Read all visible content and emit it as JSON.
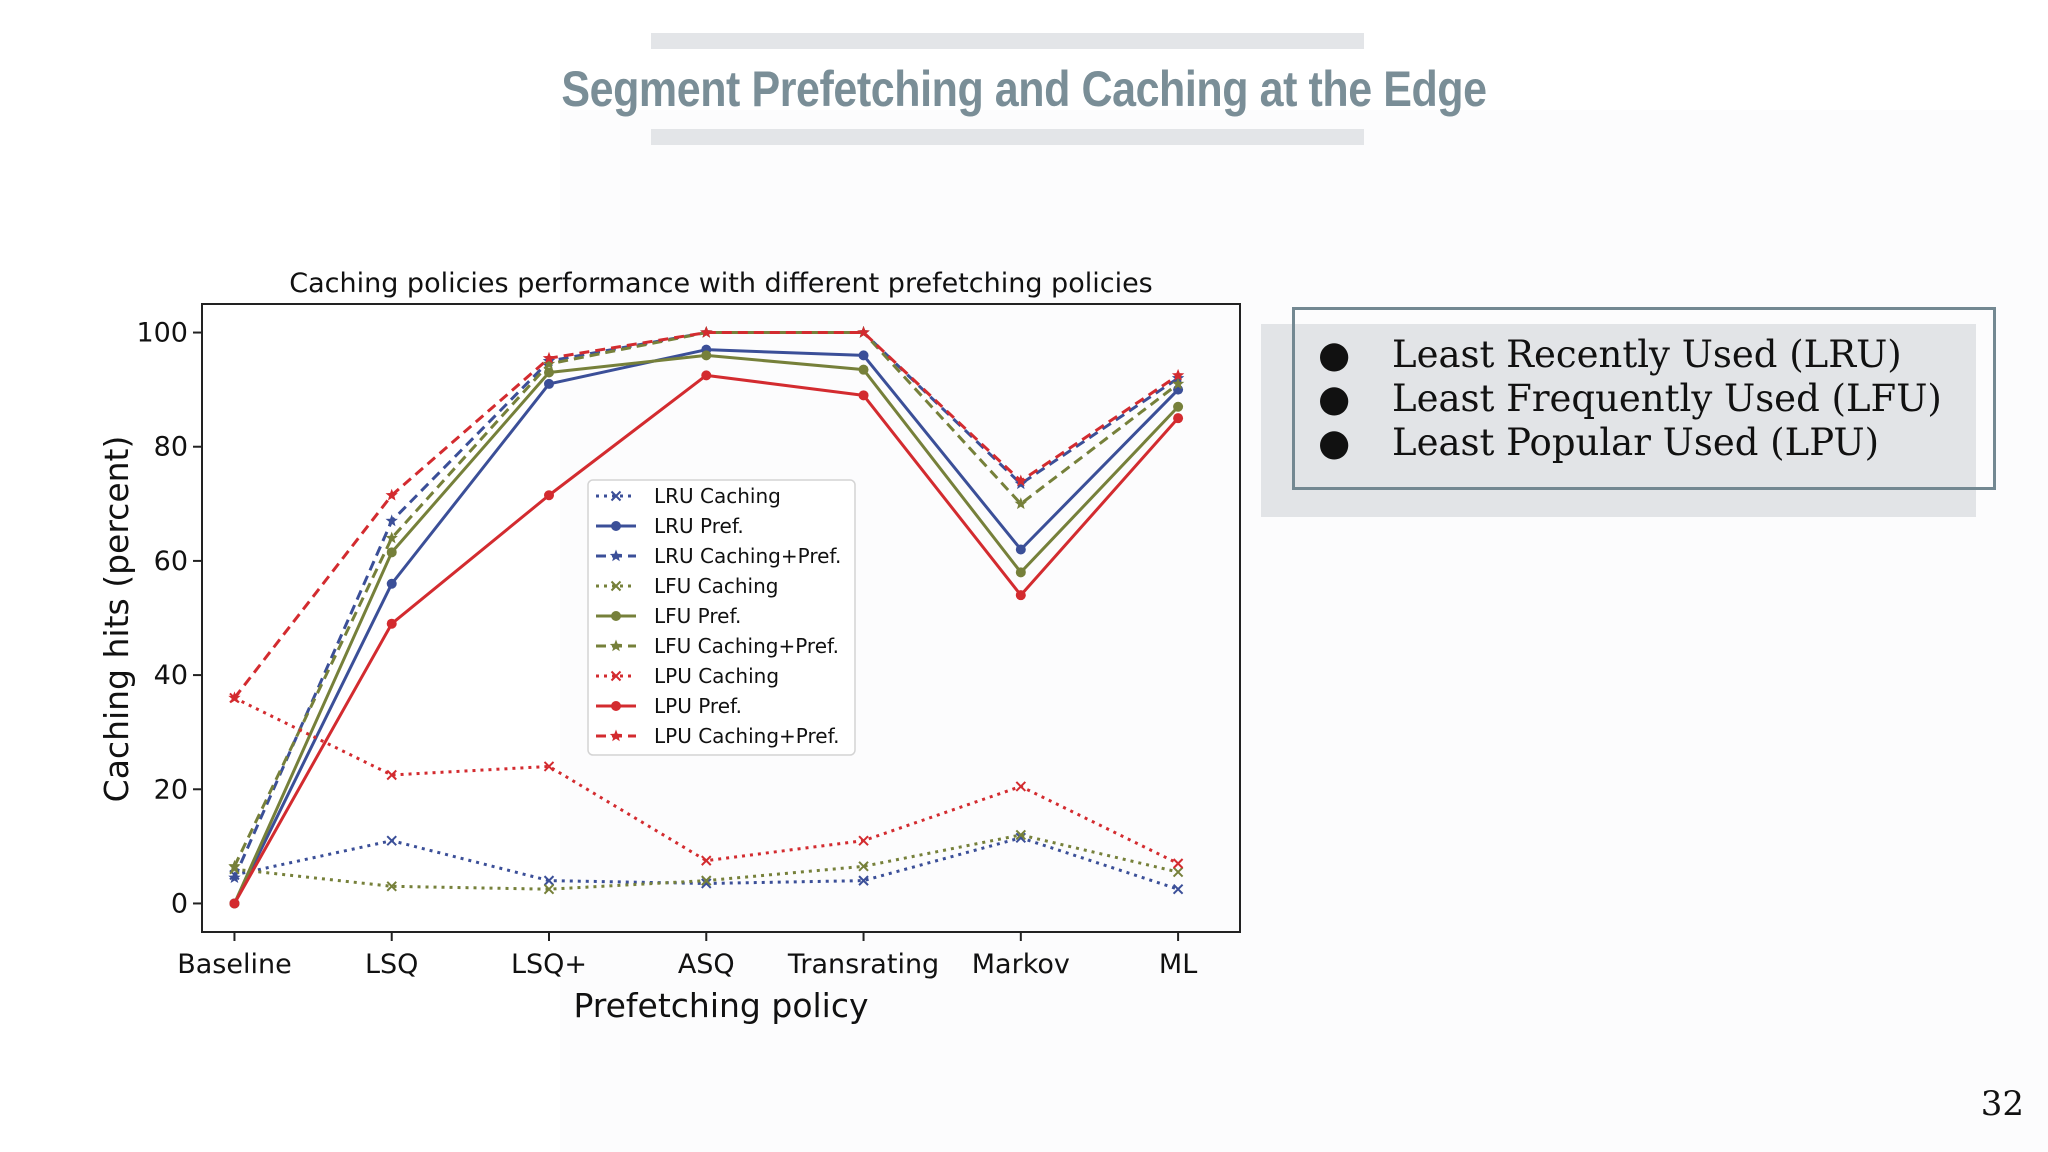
{
  "slide": {
    "title": "Segment Prefetching and Caching at the Edge",
    "bullets": [
      "Least Recently Used (LRU)",
      "Least Frequently Used (LFU)",
      "Least Popular Used (LPU)"
    ],
    "bullet_icon": "filled-circle",
    "page_number": "32"
  },
  "chart_data": {
    "type": "line",
    "title": "Caching policies performance with different prefetching policies",
    "xlabel": "Prefetching policy",
    "ylabel": "Caching hits (percent)",
    "categories": [
      "Baseline",
      "LSQ",
      "LSQ+",
      "ASQ",
      "Transrating",
      "Markov",
      "ML"
    ],
    "ylim": [
      -5,
      105
    ],
    "yticks": [
      0,
      20,
      40,
      60,
      80,
      100
    ],
    "grid": false,
    "legend_position": "center",
    "series": [
      {
        "name": "LRU Caching",
        "color": "#3b4f98",
        "style": "dotted",
        "marker": "x",
        "values": [
          5,
          11,
          4,
          3.5,
          4,
          11.5,
          2.5
        ]
      },
      {
        "name": "LRU Pref.",
        "color": "#3b4f98",
        "style": "solid",
        "marker": "circle",
        "values": [
          0,
          56,
          91,
          97,
          96,
          62,
          90
        ]
      },
      {
        "name": "LRU Caching+Pref.",
        "color": "#3b4f98",
        "style": "dashed",
        "marker": "star",
        "values": [
          4.5,
          67,
          95,
          100,
          100,
          73.5,
          92
        ]
      },
      {
        "name": "LFU Caching",
        "color": "#76803a",
        "style": "dotted",
        "marker": "x",
        "values": [
          6,
          3,
          2.5,
          4,
          6.5,
          12,
          5.5
        ]
      },
      {
        "name": "LFU Pref.",
        "color": "#76803a",
        "style": "solid",
        "marker": "circle",
        "values": [
          0,
          61.5,
          93,
          96,
          93.5,
          58,
          87
        ]
      },
      {
        "name": "LFU Caching+Pref.",
        "color": "#76803a",
        "style": "dashed",
        "marker": "star",
        "values": [
          6.5,
          64,
          94.5,
          100,
          100,
          70,
          91
        ]
      },
      {
        "name": "LPU Caching",
        "color": "#d32b2f",
        "style": "dotted",
        "marker": "x",
        "values": [
          36,
          22.5,
          24,
          7.5,
          11,
          20.5,
          7
        ]
      },
      {
        "name": "LPU Pref.",
        "color": "#d32b2f",
        "style": "solid",
        "marker": "circle",
        "values": [
          0,
          49,
          71.5,
          92.5,
          89,
          54,
          85
        ]
      },
      {
        "name": "LPU Caching+Pref.",
        "color": "#d32b2f",
        "style": "dashed",
        "marker": "star",
        "values": [
          36,
          71.5,
          95.5,
          100,
          100,
          74,
          92.5
        ]
      }
    ]
  }
}
